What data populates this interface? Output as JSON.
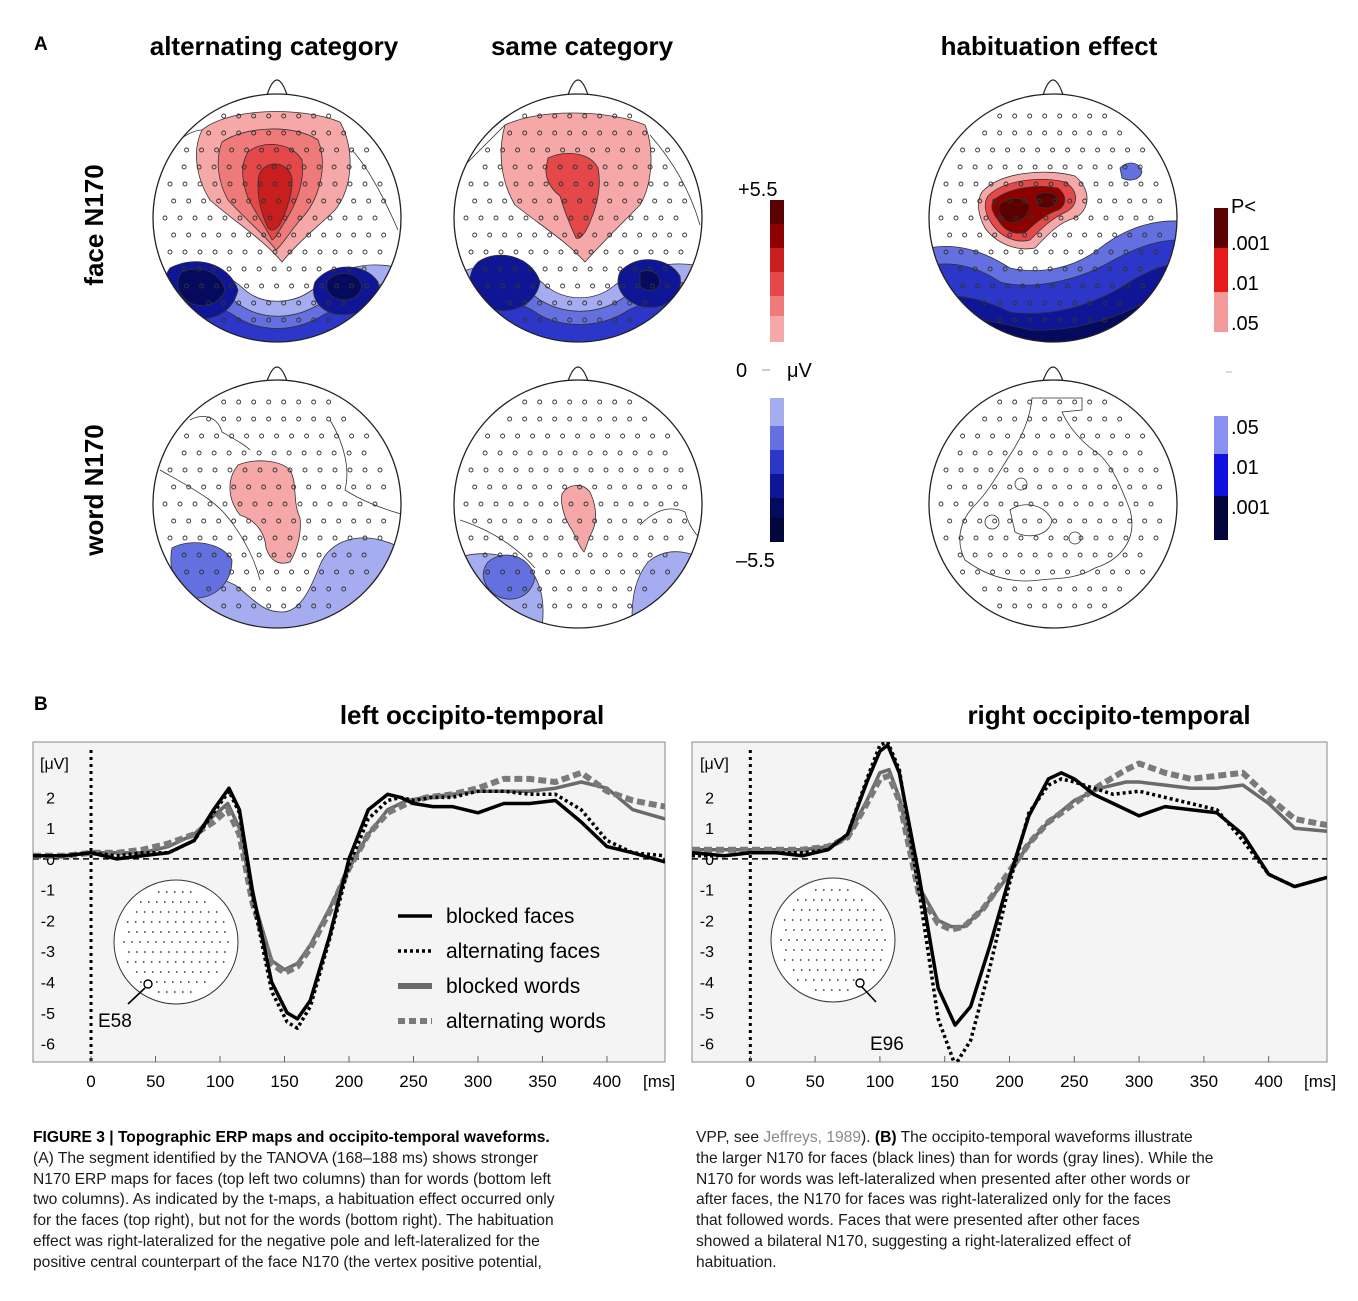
{
  "panel_a": {
    "label": "A",
    "col_titles": [
      "alternating category",
      "same category",
      "habituation effect"
    ],
    "row_titles": [
      "face N170",
      "word N170"
    ],
    "uv_scale": {
      "top": "+5.5",
      "zero": "0",
      "unit": "μV",
      "bottom": "–5.5"
    },
    "p_scale": {
      "title": "P<",
      "pos_levels": [
        ".001",
        ".01",
        ".05"
      ],
      "neg_levels": [
        ".05",
        ".01",
        ".001"
      ]
    },
    "colors": {
      "pos": [
        "#f6a8a8",
        "#ef7a7a",
        "#e54848",
        "#c81e1e",
        "#8c0000",
        "#5a0000"
      ],
      "neg": [
        "#a6acf0",
        "#6470e0",
        "#2c36c8",
        "#0e1696",
        "#060a5e",
        "#03063c"
      ]
    }
  },
  "panel_b": {
    "label": "B",
    "left_title": "left occipito-temporal",
    "right_title": "right occipito-temporal",
    "yunit": "[μV]",
    "xunit": "[ms]",
    "left_electrode": "E58",
    "right_electrode": "E96",
    "legend": [
      "blocked faces",
      "alternating faces",
      "blocked words",
      "alternating words"
    ]
  },
  "chart_data": [
    {
      "type": "line",
      "title": "left occipito-temporal",
      "xlabel": "[ms]",
      "ylabel": "[μV]",
      "xlim": [
        -45,
        445
      ],
      "ylim": [
        -6.6,
        3.8
      ],
      "xticks": [
        0,
        50,
        100,
        150,
        200,
        250,
        300,
        350,
        400
      ],
      "xtick_labels": [
        "0",
        "50",
        "100",
        "150",
        "200",
        "250",
        "300",
        "350",
        "400"
      ],
      "yticks": [
        2,
        1,
        0,
        -1,
        -2,
        -3,
        -4,
        -5,
        -6
      ],
      "ytick_labels": [
        "2",
        "1",
        "0",
        "-1",
        "-2",
        "-3",
        "-4",
        "-5",
        "-6"
      ],
      "grid": false,
      "series": [
        {
          "name": "blocked faces",
          "color": "#000000",
          "style": "solid",
          "x": [
            -45,
            -20,
            0,
            20,
            40,
            60,
            80,
            95,
            107,
            115,
            125,
            140,
            152,
            160,
            170,
            185,
            200,
            215,
            230,
            240,
            250,
            265,
            280,
            300,
            320,
            340,
            360,
            380,
            400,
            420,
            445
          ],
          "y": [
            0.1,
            0.1,
            0.2,
            0.0,
            0.1,
            0.2,
            0.6,
            1.6,
            2.3,
            1.6,
            -1.0,
            -4.0,
            -5.0,
            -5.2,
            -4.6,
            -2.5,
            0.0,
            1.6,
            2.1,
            2.0,
            1.8,
            1.7,
            1.7,
            1.5,
            1.8,
            1.8,
            1.9,
            1.2,
            0.4,
            0.2,
            -0.1
          ]
        },
        {
          "name": "alternating faces",
          "color": "#000000",
          "style": "dotted",
          "x": [
            -45,
            -20,
            0,
            20,
            40,
            60,
            80,
            95,
            107,
            115,
            125,
            140,
            152,
            160,
            170,
            185,
            200,
            215,
            230,
            240,
            250,
            265,
            280,
            300,
            320,
            340,
            360,
            380,
            400,
            420,
            445
          ],
          "y": [
            0.1,
            0.1,
            0.2,
            0.1,
            0.2,
            0.2,
            0.6,
            1.5,
            2.2,
            1.5,
            -1.2,
            -4.3,
            -5.3,
            -5.5,
            -4.8,
            -2.6,
            -0.2,
            1.3,
            1.9,
            2.0,
            1.9,
            2.0,
            2.0,
            2.2,
            2.2,
            2.1,
            2.1,
            1.6,
            0.6,
            0.2,
            0.1
          ]
        },
        {
          "name": "blocked words",
          "color": "#6a6a6a",
          "style": "solid",
          "x": [
            -45,
            -20,
            0,
            20,
            40,
            60,
            80,
            95,
            106,
            115,
            125,
            140,
            150,
            160,
            170,
            185,
            200,
            215,
            230,
            245,
            260,
            280,
            300,
            320,
            340,
            360,
            380,
            400,
            420,
            445
          ],
          "y": [
            0.1,
            0.1,
            0.2,
            0.2,
            0.2,
            0.4,
            0.8,
            1.4,
            1.8,
            1.0,
            -1.2,
            -3.3,
            -3.6,
            -3.4,
            -2.8,
            -1.6,
            -0.3,
            0.8,
            1.6,
            1.9,
            2.0,
            2.1,
            2.2,
            2.2,
            2.2,
            2.3,
            2.5,
            2.3,
            1.6,
            1.3
          ]
        },
        {
          "name": "alternating words",
          "color": "#7a7a7a",
          "style": "dashed",
          "x": [
            -45,
            -20,
            0,
            20,
            40,
            60,
            80,
            95,
            106,
            115,
            125,
            140,
            150,
            160,
            170,
            185,
            200,
            215,
            230,
            245,
            260,
            280,
            300,
            320,
            340,
            360,
            380,
            400,
            420,
            445
          ],
          "y": [
            0.1,
            0.1,
            0.2,
            0.2,
            0.3,
            0.5,
            0.8,
            1.2,
            1.6,
            0.8,
            -1.4,
            -3.4,
            -3.7,
            -3.5,
            -2.9,
            -1.7,
            -0.3,
            0.8,
            1.5,
            1.8,
            2.0,
            2.1,
            2.3,
            2.6,
            2.6,
            2.5,
            2.8,
            2.2,
            1.9,
            1.7
          ]
        }
      ]
    },
    {
      "type": "line",
      "title": "right occipito-temporal",
      "xlabel": "[ms]",
      "ylabel": "[μV]",
      "xlim": [
        -45,
        445
      ],
      "ylim": [
        -6.6,
        3.8
      ],
      "xticks": [
        0,
        50,
        100,
        150,
        200,
        250,
        300,
        350,
        400
      ],
      "xtick_labels": [
        "0",
        "50",
        "100",
        "150",
        "200",
        "250",
        "300",
        "350",
        "400"
      ],
      "yticks": [
        2,
        1,
        0,
        -1,
        -2,
        -3,
        -4,
        -5,
        -6
      ],
      "ytick_labels": [
        "2",
        "1",
        "0",
        "-1",
        "-2",
        "-3",
        "-4",
        "-5",
        "-6"
      ],
      "grid": false,
      "series": [
        {
          "name": "blocked faces",
          "color": "#000000",
          "style": "solid",
          "x": [
            -45,
            -20,
            0,
            20,
            40,
            60,
            75,
            90,
            100,
            106,
            115,
            130,
            145,
            158,
            170,
            185,
            200,
            215,
            230,
            240,
            250,
            265,
            280,
            300,
            320,
            340,
            360,
            380,
            400,
            420,
            445
          ],
          "y": [
            0.2,
            0.1,
            0.2,
            0.2,
            0.1,
            0.3,
            0.8,
            2.5,
            3.5,
            3.7,
            2.8,
            -0.5,
            -4.2,
            -5.4,
            -4.8,
            -2.8,
            -0.6,
            1.4,
            2.6,
            2.8,
            2.6,
            2.1,
            1.8,
            1.4,
            1.7,
            1.6,
            1.5,
            0.8,
            -0.5,
            -0.9,
            -0.6
          ]
        },
        {
          "name": "alternating faces",
          "color": "#000000",
          "style": "dotted",
          "x": [
            -45,
            -20,
            0,
            20,
            40,
            60,
            75,
            90,
            100,
            106,
            115,
            130,
            145,
            158,
            170,
            185,
            200,
            215,
            230,
            240,
            250,
            265,
            280,
            300,
            320,
            340,
            360,
            380,
            400,
            420,
            445
          ],
          "y": [
            0.1,
            0.1,
            0.2,
            0.2,
            0.2,
            0.3,
            0.8,
            2.6,
            3.7,
            3.8,
            2.9,
            -1.0,
            -5.2,
            -6.7,
            -5.9,
            -3.5,
            -0.8,
            1.5,
            2.4,
            2.6,
            2.5,
            2.3,
            2.1,
            2.2,
            2.0,
            1.8,
            1.6,
            0.6,
            -0.5,
            -0.9,
            -0.6
          ]
        },
        {
          "name": "blocked words",
          "color": "#6a6a6a",
          "style": "solid",
          "x": [
            -45,
            -20,
            0,
            20,
            40,
            60,
            75,
            90,
            100,
            107,
            115,
            130,
            145,
            155,
            165,
            180,
            200,
            215,
            230,
            250,
            270,
            290,
            300,
            320,
            340,
            360,
            380,
            400,
            420,
            445
          ],
          "y": [
            0.3,
            0.3,
            0.3,
            0.3,
            0.3,
            0.4,
            0.7,
            1.9,
            2.8,
            2.9,
            2.0,
            -0.9,
            -2.0,
            -2.2,
            -2.2,
            -1.6,
            -0.5,
            0.5,
            1.2,
            1.9,
            2.3,
            2.5,
            2.5,
            2.4,
            2.3,
            2.3,
            2.4,
            1.8,
            1.0,
            0.9
          ]
        },
        {
          "name": "alternating words",
          "color": "#7a7a7a",
          "style": "dashed",
          "x": [
            -45,
            -20,
            0,
            20,
            40,
            60,
            75,
            90,
            100,
            107,
            115,
            130,
            145,
            155,
            165,
            180,
            200,
            215,
            230,
            250,
            270,
            290,
            300,
            320,
            340,
            360,
            380,
            400,
            420,
            445
          ],
          "y": [
            0.3,
            0.3,
            0.3,
            0.3,
            0.3,
            0.4,
            0.7,
            1.8,
            2.6,
            2.7,
            1.9,
            -1.1,
            -2.1,
            -2.3,
            -2.2,
            -1.6,
            -0.4,
            0.5,
            1.2,
            1.8,
            2.4,
            2.9,
            3.1,
            2.8,
            2.6,
            2.7,
            2.8,
            2.0,
            1.3,
            1.1
          ]
        }
      ]
    }
  ],
  "caption": {
    "left_lines": [
      "FIGURE 3 | Topographic ERP maps and occipito-temporal waveforms.",
      "(A) The segment identified by the TANOVA (168–188 ms) shows stronger",
      "N170 ERP maps for faces (top left two columns) than for words (bottom left",
      "two columns). As indicated by the t-maps, a habituation effect occurred only",
      "for the faces (top right), but not for the words (bottom right). The habituation",
      "effect was right-lateralized for the negative pole and left-lateralized for the",
      "positive central counterpart of the face N170 (the vertex positive potential,"
    ],
    "right_line1_a": "VPP, see ",
    "right_line1_ref": "Jeffreys, 1989",
    "right_line1_b": "). ",
    "right_line1_bold": "(B)",
    "right_line1_c": " The occipito-temporal waveforms illustrate",
    "right_lines": [
      "the larger N170 for faces (black lines) than for words (gray lines). While the",
      "N170 for words was left-lateralized when presented after other words or",
      "after faces, the N170 for faces was right-lateralized only for the faces",
      "that followed words. Faces that were presented after other faces",
      "showed a bilateral N170, suggesting a right-lateralized effect of",
      "habituation."
    ]
  }
}
